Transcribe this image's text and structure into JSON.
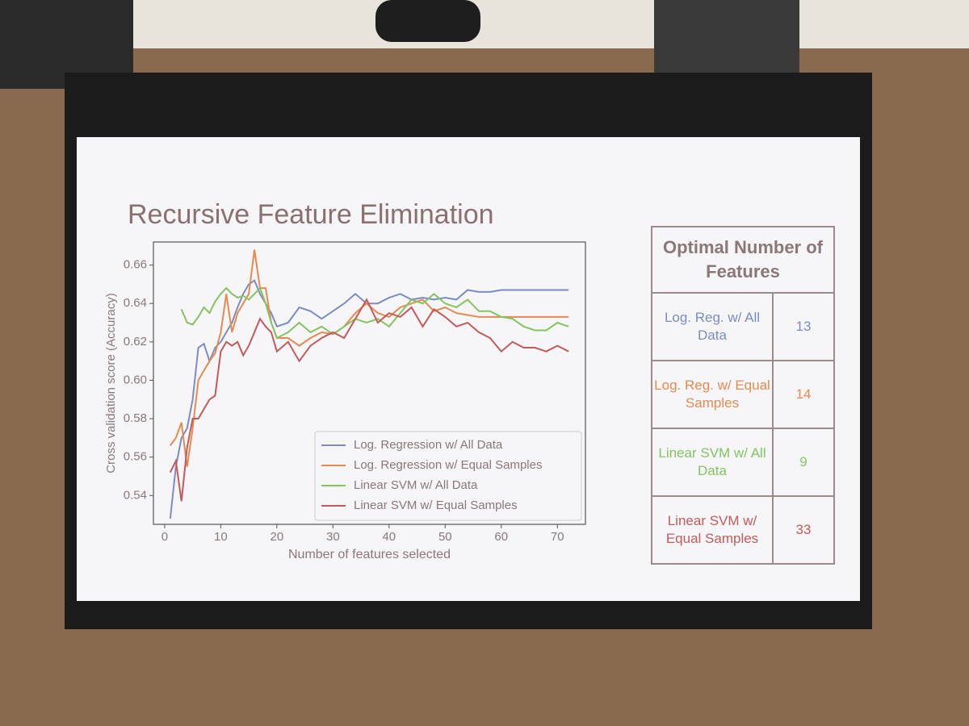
{
  "chart_data": {
    "type": "line",
    "title": "Recursive Feature Elimination",
    "x_label": "Number of features selected",
    "y_label": "Cross validation score (Accuracy)",
    "x": [
      1,
      2,
      3,
      4,
      5,
      6,
      7,
      8,
      9,
      10,
      11,
      12,
      13,
      14,
      15,
      16,
      17,
      18,
      19,
      20,
      22,
      24,
      26,
      28,
      30,
      32,
      34,
      36,
      38,
      40,
      42,
      44,
      46,
      48,
      50,
      52,
      54,
      56,
      58,
      60,
      62,
      64,
      66,
      68,
      70,
      72
    ],
    "series": [
      {
        "name": "Log. Regression w/ All Data",
        "color": "#7b8cc4",
        "values": [
          0.528,
          0.555,
          0.57,
          0.575,
          0.59,
          0.617,
          0.619,
          0.61,
          0.617,
          0.62,
          0.625,
          0.63,
          0.638,
          0.645,
          0.65,
          0.652,
          0.645,
          0.64,
          0.635,
          0.628,
          0.63,
          0.638,
          0.636,
          0.632,
          0.636,
          0.64,
          0.645,
          0.64,
          0.64,
          0.643,
          0.645,
          0.642,
          0.643,
          0.642,
          0.643,
          0.642,
          0.647,
          0.646,
          0.646,
          0.647,
          0.647,
          0.647,
          0.647,
          0.647,
          0.647,
          0.647
        ]
      },
      {
        "name": "Log. Regression w/ Equal Samples",
        "color": "#e8894e",
        "values": [
          0.566,
          0.57,
          0.578,
          0.555,
          0.575,
          0.6,
          0.605,
          0.61,
          0.614,
          0.625,
          0.645,
          0.625,
          0.635,
          0.64,
          0.645,
          0.668,
          0.648,
          0.648,
          0.63,
          0.622,
          0.622,
          0.618,
          0.622,
          0.625,
          0.624,
          0.628,
          0.635,
          0.64,
          0.635,
          0.633,
          0.638,
          0.64,
          0.642,
          0.636,
          0.638,
          0.635,
          0.634,
          0.633,
          0.633,
          0.633,
          0.633,
          0.633,
          0.633,
          0.633,
          0.633,
          0.633
        ]
      },
      {
        "name": "Linear SVM w/ All Data",
        "color": "#86c460",
        "values": [
          null,
          null,
          0.637,
          0.63,
          0.629,
          0.633,
          0.638,
          0.635,
          0.641,
          0.645,
          0.648,
          0.645,
          0.643,
          0.644,
          0.642,
          0.645,
          0.648,
          0.64,
          0.63,
          0.622,
          0.625,
          0.63,
          0.625,
          0.628,
          0.624,
          0.628,
          0.632,
          0.63,
          0.632,
          0.628,
          0.635,
          0.642,
          0.64,
          0.645,
          0.64,
          0.638,
          0.642,
          0.636,
          0.636,
          0.633,
          0.632,
          0.628,
          0.626,
          0.626,
          0.63,
          0.628
        ]
      },
      {
        "name": "Linear SVM w/ Equal Samples",
        "color": "#c45a5a",
        "values": [
          0.552,
          0.558,
          0.537,
          0.565,
          0.58,
          0.58,
          0.585,
          0.59,
          0.592,
          0.615,
          0.62,
          0.618,
          0.62,
          0.613,
          0.618,
          0.625,
          0.632,
          0.628,
          0.625,
          0.615,
          0.62,
          0.61,
          0.618,
          0.622,
          0.625,
          0.622,
          0.632,
          0.642,
          0.63,
          0.635,
          0.633,
          0.638,
          0.628,
          0.637,
          0.633,
          0.628,
          0.63,
          0.625,
          0.622,
          0.615,
          0.62,
          0.617,
          0.617,
          0.615,
          0.618,
          0.615
        ]
      }
    ],
    "xlim": [
      -2,
      75
    ],
    "xticks": [
      0,
      10,
      20,
      30,
      40,
      50,
      60,
      70
    ],
    "ylim": [
      0.525,
      0.672
    ],
    "yticks": [
      0.54,
      0.56,
      0.58,
      {
        "value": 0.6,
        "label": "0.60"
      },
      0.62,
      0.64,
      0.66
    ],
    "legend": "lower right"
  },
  "table": {
    "header": "Optimal Number of Features",
    "rows": [
      [
        "Log. Reg. w/ All Data",
        13
      ],
      [
        "Log. Reg. w/ Equal Samples",
        14
      ],
      [
        "Linear SVM w/ All Data",
        9
      ],
      [
        "Linear SVM w/ Equal Samples",
        33
      ]
    ]
  }
}
